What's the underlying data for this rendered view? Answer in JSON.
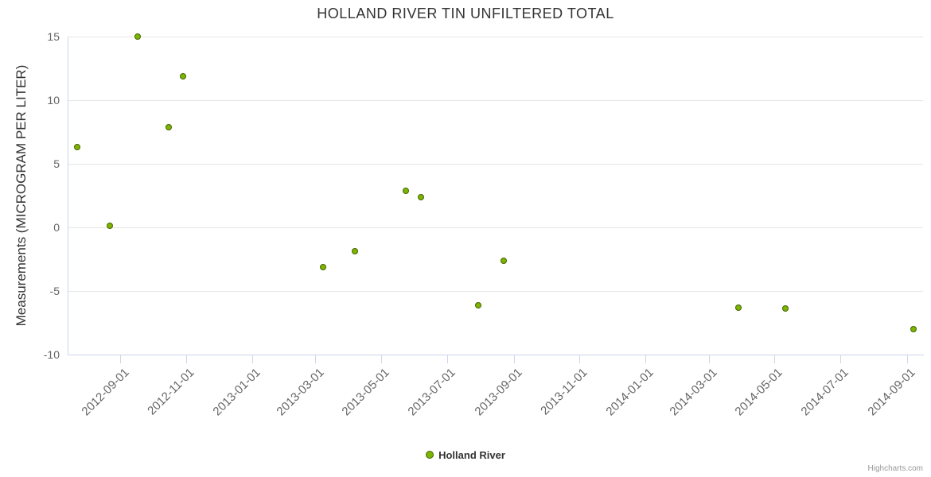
{
  "credits": "Highcharts.com",
  "legend": {
    "series_label": "Holland River"
  },
  "colors": {
    "point_fill": "#7cb500",
    "point_border": "#456300",
    "grid": "#e6e6e6",
    "axis_line": "#ccd6eb",
    "tick_label": "#666666",
    "title": "#333333"
  },
  "chart_data": {
    "type": "scatter",
    "title": "HOLLAND RIVER TIN UNFILTERED TOTAL",
    "xlabel": "",
    "ylabel": "Measurements (MICROGRAM PER LITER)",
    "legend_position": "bottom-center",
    "grid": "horizontal-only",
    "x_range": [
      "2012-07-14",
      "2014-09-16"
    ],
    "y_range": [
      -10,
      15
    ],
    "y_ticks": [
      {
        "value": 15,
        "label": "15"
      },
      {
        "value": 10,
        "label": "10"
      },
      {
        "value": 5,
        "label": "5"
      },
      {
        "value": 0,
        "label": "0"
      },
      {
        "value": -5,
        "label": "-5"
      },
      {
        "value": -10,
        "label": "-10"
      }
    ],
    "x_ticks": [
      {
        "date": "2012-09-01",
        "label": "2012-09-01"
      },
      {
        "date": "2012-11-01",
        "label": "2012-11-01"
      },
      {
        "date": "2013-01-01",
        "label": "2013-01-01"
      },
      {
        "date": "2013-03-01",
        "label": "2013-03-01"
      },
      {
        "date": "2013-05-01",
        "label": "2013-05-01"
      },
      {
        "date": "2013-07-01",
        "label": "2013-07-01"
      },
      {
        "date": "2013-09-01",
        "label": "2013-09-01"
      },
      {
        "date": "2013-11-01",
        "label": "2013-11-01"
      },
      {
        "date": "2014-01-01",
        "label": "2014-01-01"
      },
      {
        "date": "2014-03-01",
        "label": "2014-03-01"
      },
      {
        "date": "2014-05-01",
        "label": "2014-05-01"
      },
      {
        "date": "2014-07-01",
        "label": "2014-07-01"
      },
      {
        "date": "2014-09-01",
        "label": "2014-09-01"
      }
    ],
    "series": [
      {
        "name": "Holland River",
        "points": [
          {
            "x": "2012-07-23",
            "y": 6.3
          },
          {
            "x": "2012-08-22",
            "y": 0.1
          },
          {
            "x": "2012-09-17",
            "y": 15.0
          },
          {
            "x": "2012-10-16",
            "y": 7.9
          },
          {
            "x": "2012-10-29",
            "y": 11.9
          },
          {
            "x": "2013-03-08",
            "y": -3.1
          },
          {
            "x": "2013-04-07",
            "y": -1.9
          },
          {
            "x": "2013-05-24",
            "y": 2.9
          },
          {
            "x": "2013-06-07",
            "y": 2.4
          },
          {
            "x": "2013-07-30",
            "y": -6.1
          },
          {
            "x": "2013-08-23",
            "y": -2.6
          },
          {
            "x": "2014-03-29",
            "y": -6.3
          },
          {
            "x": "2014-05-11",
            "y": -6.4
          },
          {
            "x": "2014-09-07",
            "y": -8.0
          }
        ]
      }
    ]
  }
}
